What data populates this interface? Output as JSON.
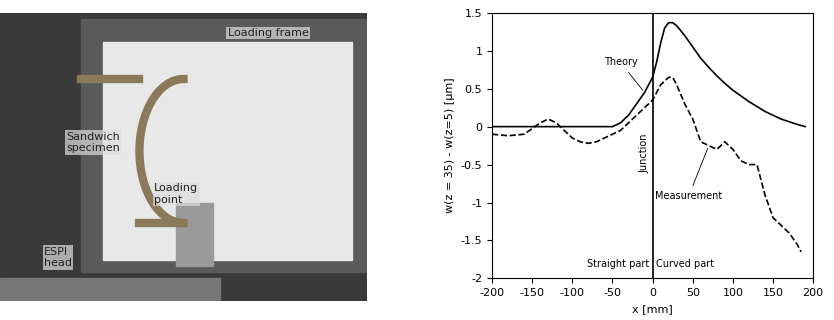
{
  "photo": {
    "labels": [
      "Loading frame",
      "Sandwich\nspecimen",
      "Loading\npoint",
      "ESPI\nhead"
    ]
  },
  "chart_data": {
    "type": "line",
    "xlabel": "x [mm]",
    "ylabel": "w(z = 35) - w(z=5) [µm]",
    "xlim": [
      -200,
      200
    ],
    "xticks": [
      -200,
      -150,
      -100,
      -50,
      0,
      50,
      100,
      150,
      200
    ],
    "ylim": [
      -2,
      1.5
    ],
    "yticks": [
      -2,
      -1.5,
      -1,
      -0.5,
      0,
      0.5,
      1,
      1.5
    ],
    "grid": false,
    "junction": {
      "label": "Junction",
      "x": 0
    },
    "regions": [
      "Straight part",
      "Curved part"
    ],
    "series": [
      {
        "name": "Theory",
        "color": "#000000",
        "line_style": "solid",
        "x": [
          -200,
          -150,
          -100,
          -60,
          -50,
          -40,
          -30,
          -20,
          -10,
          0,
          5,
          10,
          15,
          20,
          25,
          30,
          40,
          50,
          60,
          70,
          80,
          90,
          100,
          120,
          140,
          160,
          180,
          190
        ],
        "values": [
          0,
          0,
          0,
          0,
          0.0,
          0.05,
          0.15,
          0.3,
          0.45,
          0.65,
          0.85,
          1.1,
          1.3,
          1.37,
          1.37,
          1.33,
          1.2,
          1.05,
          0.9,
          0.78,
          0.67,
          0.57,
          0.48,
          0.33,
          0.2,
          0.1,
          0.03,
          0
        ]
      },
      {
        "name": "Measurement",
        "color": "#000000",
        "line_style": "dashed",
        "x": [
          -200,
          -180,
          -160,
          -140,
          -130,
          -120,
          -110,
          -100,
          -90,
          -80,
          -70,
          -60,
          -50,
          -40,
          -30,
          -20,
          -10,
          0,
          10,
          20,
          25,
          30,
          40,
          50,
          60,
          70,
          80,
          90,
          100,
          110,
          120,
          130,
          140,
          150,
          160,
          170,
          180,
          185
        ],
        "values": [
          -0.1,
          -0.12,
          -0.1,
          0.05,
          0.1,
          0.05,
          -0.05,
          -0.15,
          -0.2,
          -0.22,
          -0.2,
          -0.15,
          -0.1,
          -0.05,
          0.05,
          0.15,
          0.25,
          0.35,
          0.55,
          0.65,
          0.65,
          0.55,
          0.3,
          0.1,
          -0.2,
          -0.25,
          -0.3,
          -0.2,
          -0.3,
          -0.45,
          -0.5,
          -0.5,
          -0.9,
          -1.2,
          -1.3,
          -1.4,
          -1.55,
          -1.65
        ]
      }
    ]
  }
}
